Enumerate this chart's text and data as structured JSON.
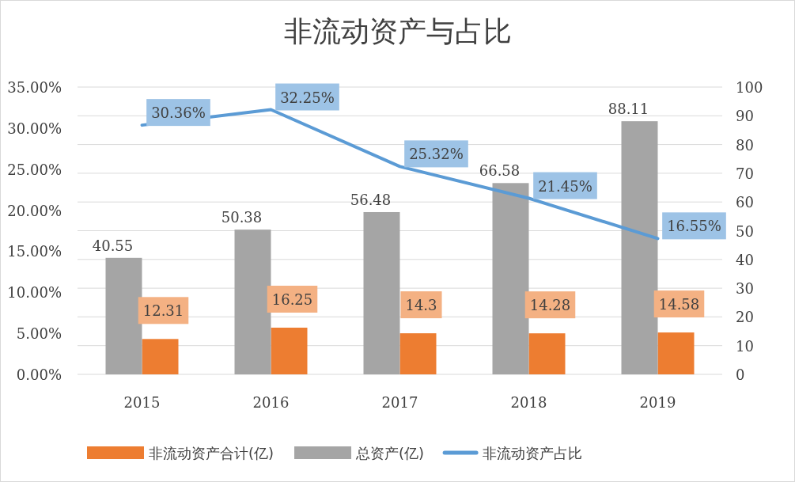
{
  "chart_data": {
    "type": "bar",
    "title": "非流动资产与占比",
    "categories": [
      "2015",
      "2016",
      "2017",
      "2018",
      "2019"
    ],
    "series": [
      {
        "name": "非流动资产合计(亿)",
        "axis": "y2",
        "color": "#ed7d31",
        "values": [
          12.31,
          16.25,
          14.3,
          14.28,
          14.58
        ]
      },
      {
        "name": "总资产(亿)",
        "axis": "y2",
        "color": "#a5a5a5",
        "values": [
          40.55,
          50.38,
          56.48,
          66.58,
          88.11
        ]
      },
      {
        "name": "非流动资产占比",
        "type": "line",
        "color": "#5b9bd5",
        "values": [
          30.36,
          32.25,
          25.32,
          21.45,
          16.55
        ],
        "value_labels": [
          "30.36%",
          "32.25%",
          "25.32%",
          "21.45%",
          "16.55%"
        ]
      }
    ],
    "ylim": [
      0,
      35
    ],
    "yticks": [
      {
        "value": 0,
        "label": "0.00%"
      },
      {
        "value": 5,
        "label": "5.00%"
      },
      {
        "value": 10,
        "label": "10.00%"
      },
      {
        "value": 15,
        "label": "15.00%"
      },
      {
        "value": 20,
        "label": "20.00%"
      },
      {
        "value": 25,
        "label": "25.00%"
      },
      {
        "value": 30,
        "label": "30.00%"
      },
      {
        "value": 35,
        "label": "35.00%"
      }
    ],
    "y2lim": [
      0,
      100
    ],
    "y2ticks": [
      0,
      10,
      20,
      30,
      40,
      50,
      60,
      70,
      80,
      90,
      100
    ],
    "grid": true,
    "data_labels": true,
    "legend": "bottom",
    "marker": "none"
  }
}
